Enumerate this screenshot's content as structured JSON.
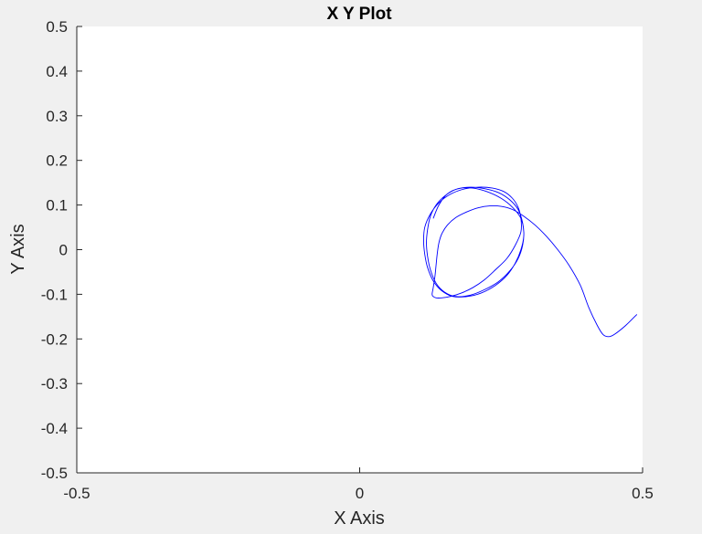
{
  "window": {
    "background": "#f0f0f0"
  },
  "chart_data": {
    "type": "line",
    "title": "X Y Plot",
    "xlabel": "X Axis",
    "ylabel": "Y Axis",
    "xlim": [
      -0.5,
      0.5
    ],
    "ylim": [
      -0.5,
      0.5
    ],
    "xticks": [
      -0.5,
      0,
      0.5
    ],
    "xtick_labels": [
      "-0.5",
      "0",
      "0.5"
    ],
    "yticks": [
      0.5,
      0.4,
      0.3,
      0.2,
      0.1,
      0,
      -0.1,
      -0.2,
      -0.3,
      -0.4,
      -0.5
    ],
    "ytick_labels": [
      "0.5",
      "0.4",
      "0.3",
      "0.2",
      "0.1",
      "0",
      "-0.1",
      "-0.2",
      "-0.3",
      "-0.4",
      "-0.5"
    ],
    "grid": false,
    "colors": {
      "line": "#0000ff",
      "axes": "#262626",
      "plot_background": "#ffffff"
    },
    "series": [
      {
        "x": [
          0.49,
          0.47,
          0.45,
          0.44,
          0.43,
          0.42,
          0.405,
          0.39,
          0.37,
          0.35,
          0.33,
          0.31,
          0.29,
          0.27,
          0.25,
          0.23,
          0.21,
          0.19,
          0.17,
          0.155,
          0.145,
          0.14,
          0.137,
          0.135,
          0.133,
          0.13,
          0.128,
          0.13,
          0.135,
          0.145,
          0.16,
          0.18,
          0.2,
          0.22,
          0.24,
          0.26,
          0.275,
          0.285,
          0.285,
          0.28,
          0.27,
          0.255,
          0.235,
          0.21,
          0.185,
          0.16,
          0.14,
          0.125,
          0.115,
          0.113,
          0.115,
          0.12,
          0.13,
          0.145,
          0.165,
          0.19,
          0.215,
          0.24,
          0.26,
          0.275,
          0.285,
          0.29,
          0.288,
          0.28,
          0.265,
          0.245,
          0.22,
          0.195,
          0.17,
          0.15,
          0.135,
          0.125,
          0.12,
          0.118,
          0.12,
          0.125,
          0.135,
          0.15,
          0.17,
          0.195,
          0.22,
          0.245,
          0.265,
          0.28,
          0.288,
          0.29,
          0.285,
          0.27,
          0.25,
          0.225,
          0.2,
          0.175,
          0.155,
          0.14,
          0.13
        ],
        "y": [
          -0.145,
          -0.17,
          -0.19,
          -0.195,
          -0.19,
          -0.17,
          -0.13,
          -0.08,
          -0.035,
          0.0,
          0.03,
          0.055,
          0.075,
          0.09,
          0.097,
          0.098,
          0.094,
          0.085,
          0.072,
          0.055,
          0.035,
          0.015,
          -0.01,
          -0.035,
          -0.06,
          -0.085,
          -0.1,
          -0.105,
          -0.108,
          -0.108,
          -0.105,
          -0.097,
          -0.085,
          -0.068,
          -0.045,
          -0.02,
          0.01,
          0.04,
          0.07,
          0.095,
          0.115,
          0.13,
          0.138,
          0.14,
          0.136,
          0.124,
          0.105,
          0.08,
          0.05,
          0.02,
          -0.01,
          -0.04,
          -0.07,
          -0.092,
          -0.105,
          -0.105,
          -0.097,
          -0.08,
          -0.058,
          -0.03,
          0.0,
          0.03,
          0.06,
          0.09,
          0.112,
          0.128,
          0.137,
          0.14,
          0.135,
          0.12,
          0.1,
          0.075,
          0.045,
          0.015,
          -0.015,
          -0.045,
          -0.075,
          -0.095,
          -0.105,
          -0.102,
          -0.09,
          -0.072,
          -0.048,
          -0.02,
          0.01,
          0.04,
          0.07,
          0.095,
          0.115,
          0.13,
          0.138,
          0.137,
          0.125,
          0.1,
          0.07
        ]
      }
    ]
  }
}
